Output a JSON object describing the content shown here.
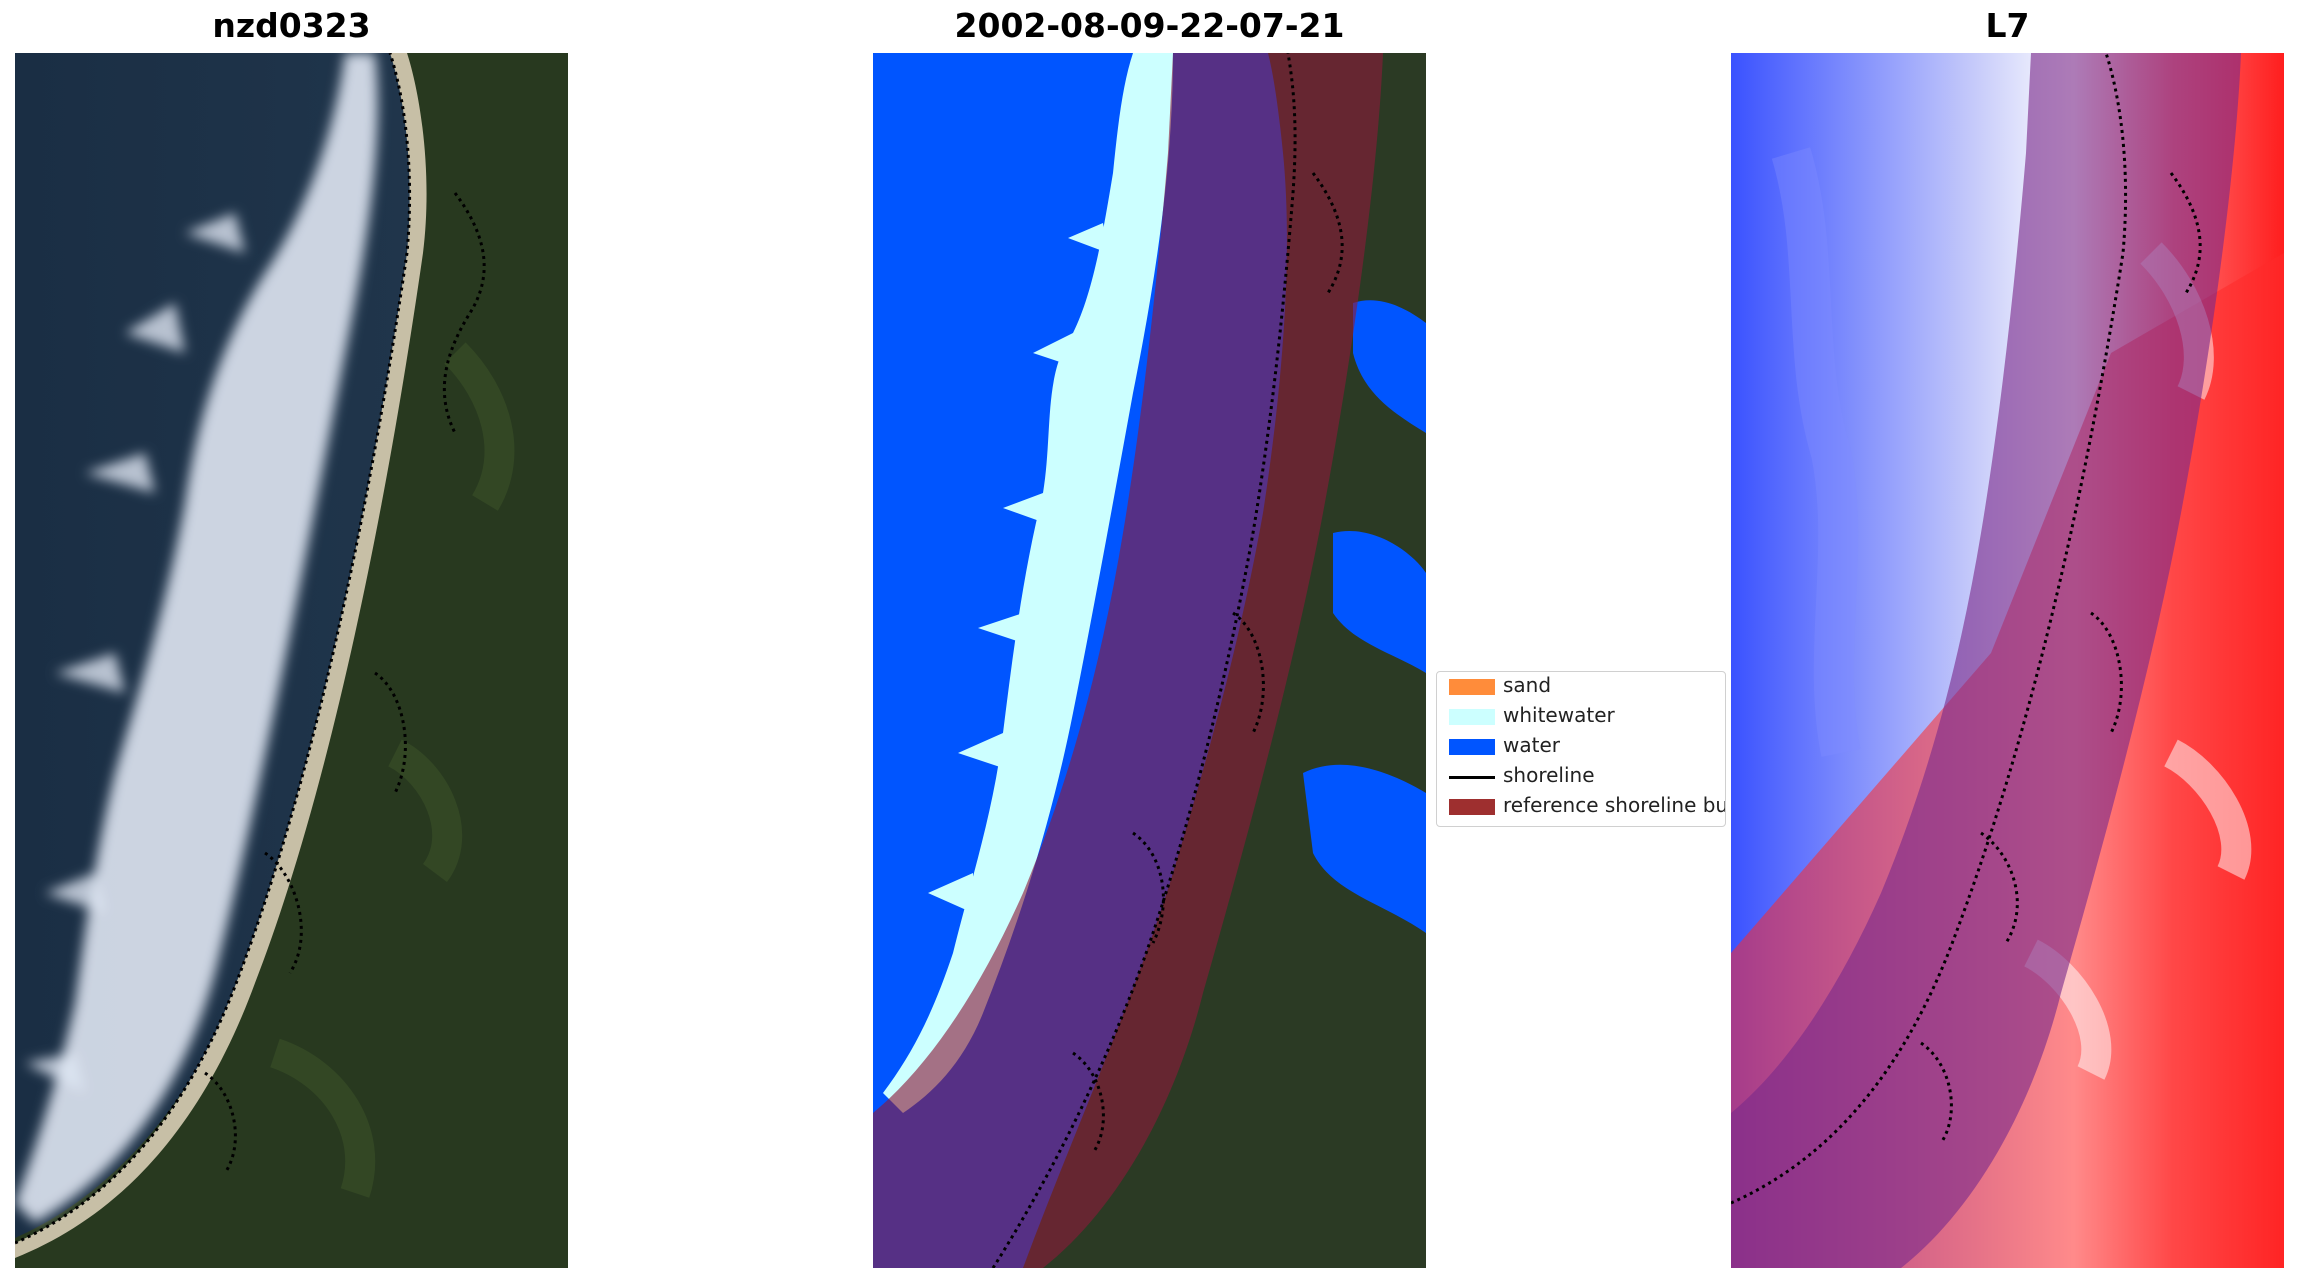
{
  "panels": [
    {
      "title": "nzd0323",
      "content": "rgb-satellite-image"
    },
    {
      "title": "2002-08-09-22-07-21",
      "content": "classified-image"
    },
    {
      "title": "L7",
      "content": "water-index-image"
    }
  ],
  "legend": {
    "items": [
      {
        "label": "sand",
        "kind": "patch",
        "color": "#ff8c3a"
      },
      {
        "label": "whitewater",
        "kind": "patch",
        "color": "#ccffff"
      },
      {
        "label": "water",
        "kind": "patch",
        "color": "#0055ff"
      },
      {
        "label": "shoreline",
        "kind": "line",
        "color": "#000000"
      },
      {
        "label": "reference shoreline buffer",
        "kind": "patch",
        "color": "#9e2f2f"
      }
    ]
  },
  "colors": {
    "ocean_dark": "#1e3550",
    "vegetation": "#28391f",
    "whitewater": "#ccffff",
    "water": "#0055ff",
    "buffer": "#8b1a3a",
    "index_blue": "#3a52ff",
    "index_red": "#ff1e1e"
  }
}
